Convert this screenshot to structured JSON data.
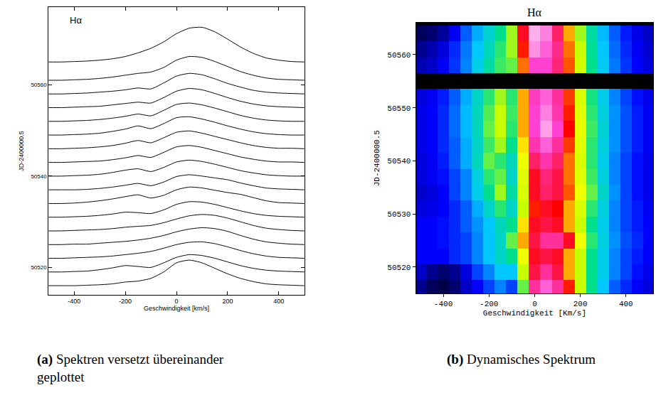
{
  "chart_data": [
    {
      "type": "line",
      "title": "Hα",
      "caption_label": "(a)",
      "caption": "Spektren versetzt übereinander geplottet",
      "x_label": "Geschwindigkeit [km/s]",
      "y_label": "JD-2400000.5",
      "color": "#000000",
      "grid": false,
      "xlim": [
        -500,
        500
      ],
      "xticks": [
        -400,
        -200,
        0,
        200,
        400
      ],
      "ylim": [
        50514,
        50577
      ],
      "yticks": [
        50520,
        50540,
        50560
      ],
      "x": [
        -500,
        -450,
        -400,
        -350,
        -300,
        -250,
        -200,
        -150,
        -100,
        -50,
        0,
        50,
        100,
        150,
        200,
        250,
        300,
        350,
        400,
        450,
        500
      ],
      "series": [
        {
          "values": [
            50516.0,
            50516.0,
            50516.0,
            50516.1,
            50516.2,
            50516.4,
            50516.8,
            50517.0,
            50517.6,
            50519.0,
            50521.0,
            50521.6,
            50521.0,
            50519.8,
            50518.6,
            50517.6,
            50516.9,
            50516.4,
            50516.2,
            50516.1,
            50516.0
          ]
        },
        {
          "values": [
            50519.0,
            50519.0,
            50519.1,
            50519.2,
            50519.5,
            50519.9,
            50520.4,
            50520.2,
            50520.0,
            50521.0,
            50522.2,
            50522.8,
            50522.6,
            50522.0,
            50521.2,
            50520.4,
            50519.8,
            50519.4,
            50519.2,
            50519.1,
            50519.0
          ]
        },
        {
          "values": [
            50522.0,
            50522.0,
            50522.1,
            50522.2,
            50522.3,
            50522.5,
            50522.8,
            50523.1,
            50523.5,
            50524.2,
            50525.0,
            50525.5,
            50525.6,
            50525.2,
            50524.5,
            50523.7,
            50523.0,
            50522.5,
            50522.2,
            50522.1,
            50522.0
          ]
        },
        {
          "values": [
            50525.0,
            50525.0,
            50525.1,
            50525.1,
            50525.3,
            50525.5,
            50525.7,
            50526.0,
            50526.4,
            50527.0,
            50527.8,
            50528.4,
            50528.7,
            50528.5,
            50527.9,
            50527.0,
            50526.2,
            50525.6,
            50525.3,
            50525.1,
            50525.0
          ]
        },
        {
          "values": [
            50528.0,
            50528.0,
            50528.1,
            50528.2,
            50528.3,
            50528.5,
            50528.8,
            50529.0,
            50529.2,
            50529.8,
            50530.6,
            50531.3,
            50531.6,
            50531.4,
            50530.8,
            50530.0,
            50529.2,
            50528.6,
            50528.3,
            50528.1,
            50528.0
          ]
        },
        {
          "values": [
            50531.0,
            50531.0,
            50531.1,
            50531.2,
            50531.4,
            50531.7,
            50532.1,
            50532.0,
            50531.8,
            50532.6,
            50533.8,
            50534.4,
            50534.3,
            50533.8,
            50533.1,
            50532.4,
            50531.8,
            50531.4,
            50531.2,
            50531.1,
            50531.0
          ]
        },
        {
          "values": [
            50534.0,
            50534.0,
            50534.1,
            50534.3,
            50534.6,
            50535.0,
            50535.5,
            50535.9,
            50535.2,
            50535.8,
            50537.0,
            50537.6,
            50537.4,
            50536.9,
            50536.4,
            50536.0,
            50535.3,
            50534.6,
            50534.2,
            50534.1,
            50534.0
          ]
        },
        {
          "values": [
            50537.0,
            50537.0,
            50537.0,
            50537.1,
            50537.3,
            50537.6,
            50538.0,
            50538.4,
            50537.9,
            50538.7,
            50539.9,
            50540.3,
            50540.0,
            50539.6,
            50539.2,
            50538.5,
            50537.9,
            50537.4,
            50537.2,
            50537.1,
            50537.0
          ]
        },
        {
          "values": [
            50540.0,
            50540.0,
            50540.1,
            50540.2,
            50540.4,
            50540.8,
            50541.3,
            50541.6,
            50541.0,
            50541.9,
            50543.1,
            50543.5,
            50543.2,
            50542.6,
            50541.9,
            50541.2,
            50540.7,
            50540.3,
            50540.1,
            50540.0,
            50540.0
          ]
        },
        {
          "values": [
            50543.0,
            50543.0,
            50543.1,
            50543.2,
            50543.3,
            50543.6,
            50544.0,
            50544.5,
            50544.1,
            50545.2,
            50546.4,
            50546.7,
            50546.3,
            50545.6,
            50544.9,
            50544.2,
            50543.7,
            50543.3,
            50543.1,
            50543.1,
            50543.0
          ]
        },
        {
          "values": [
            50546.0,
            50546.0,
            50546.1,
            50546.2,
            50546.4,
            50546.7,
            50547.2,
            50547.8,
            50547.3,
            50548.4,
            50549.6,
            50549.9,
            50549.4,
            50548.7,
            50548.0,
            50547.3,
            50546.7,
            50546.3,
            50546.1,
            50546.1,
            50546.0
          ]
        },
        {
          "values": [
            50549.0,
            50549.0,
            50549.1,
            50549.2,
            50549.4,
            50549.8,
            50550.3,
            50551.0,
            50550.4,
            50551.5,
            50552.8,
            50553.0,
            50552.5,
            50551.8,
            50551.0,
            50550.3,
            50549.7,
            50549.3,
            50549.1,
            50549.0,
            50549.0
          ]
        },
        {
          "values": [
            50552.0,
            50552.0,
            50552.1,
            50552.2,
            50552.4,
            50552.7,
            50553.1,
            50553.6,
            50553.2,
            50554.4,
            50555.7,
            50556.0,
            50555.6,
            50554.9,
            50554.1,
            50553.3,
            50552.7,
            50552.3,
            50552.1,
            50552.0,
            50552.0
          ]
        },
        {
          "values": [
            50555.0,
            50555.0,
            50555.1,
            50555.2,
            50555.3,
            50555.6,
            50555.9,
            50556.2,
            50556.0,
            50557.2,
            50558.6,
            50559.2,
            50558.9,
            50558.1,
            50557.2,
            50556.4,
            50555.8,
            50555.4,
            50555.2,
            50555.1,
            50555.0
          ]
        },
        {
          "values": [
            50558.0,
            50558.0,
            50558.1,
            50558.2,
            50558.4,
            50558.6,
            50558.9,
            50559.3,
            50559.1,
            50560.4,
            50561.9,
            50562.5,
            50562.2,
            50561.3,
            50560.3,
            50559.5,
            50558.8,
            50558.4,
            50558.2,
            50558.1,
            50558.0
          ]
        },
        {
          "values": [
            50561.0,
            50561.0,
            50561.1,
            50561.2,
            50561.4,
            50561.7,
            50562.1,
            50562.5,
            50562.8,
            50563.8,
            50565.4,
            50566.2,
            50566.0,
            50565.1,
            50564.0,
            50562.9,
            50562.1,
            50561.5,
            50561.2,
            50561.1,
            50561.0
          ]
        },
        {
          "values": [
            50565.0,
            50565.0,
            50565.1,
            50565.2,
            50565.4,
            50565.7,
            50566.2,
            50567.0,
            50568.0,
            50569.4,
            50571.2,
            50572.4,
            50572.6,
            50571.6,
            50570.0,
            50568.3,
            50566.9,
            50565.9,
            50565.4,
            50565.1,
            50565.0
          ]
        }
      ]
    },
    {
      "type": "heatmap",
      "title": "Hα",
      "caption_label": "(b)",
      "caption": "Dynamisches Spektrum",
      "x_label": "Geschwindigkeit [Km/s]",
      "y_label": "JD-2400000.5",
      "grid": false,
      "xlim": [
        -520,
        520
      ],
      "xticks": [
        -400,
        -200,
        0,
        200,
        400
      ],
      "ylim": [
        50515,
        50566
      ],
      "yticks": [
        50520,
        50530,
        50540,
        50550,
        50560
      ],
      "zlim": [
        0,
        10
      ],
      "x": [
        -500,
        -450,
        -400,
        -350,
        -300,
        -250,
        -200,
        -150,
        -100,
        -50,
        0,
        50,
        100,
        150,
        200,
        250,
        300,
        350,
        400,
        450,
        500
      ],
      "y": [
        50516,
        50519,
        50522,
        50525,
        50528,
        50531,
        50534,
        50537,
        50540,
        50543,
        50546,
        50549,
        50552,
        50555,
        50558,
        50561,
        50564
      ],
      "z": [
        [
          1.5,
          1,
          0.8,
          1.2,
          2,
          2.5,
          3,
          3.5,
          3,
          5.5,
          8.5,
          9,
          8.5,
          7.5,
          6,
          5,
          4,
          3.2,
          2.8,
          2.5,
          2.2
        ],
        [
          2,
          1.5,
          1.2,
          1.5,
          2.2,
          3,
          3.5,
          4,
          4,
          6,
          8,
          8.5,
          8,
          7,
          6,
          5,
          4.2,
          3.5,
          3,
          2.6,
          2.3
        ],
        [
          2.5,
          2.5,
          2.5,
          2.8,
          3,
          3.5,
          4,
          4.5,
          5,
          6.5,
          7.8,
          8,
          7.8,
          7,
          6,
          5,
          4.2,
          3.5,
          3,
          2.7,
          2.5
        ],
        [
          2.5,
          2.5,
          2.6,
          2.8,
          3,
          3.5,
          4,
          4.5,
          5.5,
          7,
          8,
          8.5,
          8.5,
          7.8,
          6.5,
          5.2,
          4.3,
          3.6,
          3.1,
          2.8,
          2.5
        ],
        [
          2.5,
          2.5,
          2.6,
          2.8,
          3.2,
          3.6,
          4,
          4.6,
          5,
          6.8,
          7.8,
          8,
          7.8,
          7,
          6,
          5,
          4.2,
          3.5,
          3,
          2.7,
          2.5
        ],
        [
          2.2,
          2.3,
          2.5,
          2.8,
          3.2,
          3.8,
          4.5,
          5.2,
          4.5,
          6,
          7.5,
          7.8,
          7.6,
          7,
          6.2,
          5.2,
          4.3,
          3.5,
          3,
          2.7,
          2.4
        ],
        [
          2,
          2.2,
          2.5,
          3,
          3.5,
          4.2,
          5,
          5.8,
          4.8,
          6.2,
          7.8,
          8.2,
          8,
          7.3,
          6.5,
          5.5,
          4.5,
          3.6,
          3,
          2.6,
          2.3
        ],
        [
          2.2,
          2.4,
          2.6,
          3,
          3.5,
          4.3,
          5.2,
          5.5,
          4.5,
          6.3,
          7.8,
          8.3,
          8,
          7.2,
          6.3,
          5.3,
          4.3,
          3.5,
          3,
          2.6,
          2.3
        ],
        [
          2.2,
          2.4,
          2.7,
          3.2,
          3.8,
          4.6,
          5.5,
          5.2,
          4.6,
          6.5,
          8.2,
          8.6,
          8.2,
          7.2,
          6.2,
          5.2,
          4.2,
          3.5,
          3,
          2.6,
          2.3
        ],
        [
          2.3,
          2.5,
          2.8,
          3.2,
          3.8,
          4.5,
          5.3,
          5.8,
          5,
          6.8,
          8.6,
          9,
          8.5,
          7.4,
          6.3,
          5.2,
          4.3,
          3.6,
          3.1,
          2.7,
          2.4
        ],
        [
          2.3,
          2.5,
          2.8,
          3.3,
          3.9,
          4.6,
          5.5,
          6,
          5.2,
          7,
          8.8,
          9.4,
          8.8,
          7.6,
          6.4,
          5.3,
          4.4,
          3.6,
          3.1,
          2.7,
          2.4
        ],
        [
          2.3,
          2.5,
          2.8,
          3.3,
          3.9,
          4.6,
          5.4,
          6,
          5.3,
          7,
          8.8,
          9.2,
          8.6,
          7.5,
          6.3,
          5.2,
          4.3,
          3.6,
          3.1,
          2.7,
          2.4
        ],
        [
          2.2,
          2.4,
          2.7,
          3.2,
          3.8,
          4.5,
          5.2,
          5.8,
          5.2,
          7,
          8.7,
          9,
          8.5,
          7.4,
          6.2,
          5.1,
          4.2,
          3.5,
          3,
          2.6,
          2.3
        ],
        [
          null,
          null,
          null,
          null,
          null,
          null,
          null,
          null,
          null,
          null,
          null,
          null,
          null,
          null,
          null,
          null,
          null,
          null,
          null,
          null,
          null
        ],
        [
          1.8,
          2,
          2.4,
          2.9,
          3.5,
          4.2,
          4.8,
          5.3,
          5.5,
          7.2,
          8.8,
          8.8,
          8.3,
          7.3,
          6.1,
          5,
          4.1,
          3.4,
          2.9,
          2.5,
          2.2
        ],
        [
          1.5,
          1.8,
          2.2,
          2.8,
          3.4,
          4,
          4.6,
          5.2,
          5.8,
          7.5,
          9.3,
          9,
          8.4,
          7.2,
          6,
          4.9,
          4,
          3.3,
          2.8,
          2.4,
          2.1
        ],
        [
          1,
          1.2,
          1.6,
          2.4,
          3.2,
          3.8,
          4.4,
          5,
          5.8,
          7.8,
          9.5,
          9.2,
          8.2,
          7,
          5.8,
          4.8,
          3.9,
          3.2,
          2.7,
          2.3,
          2
        ]
      ]
    }
  ]
}
